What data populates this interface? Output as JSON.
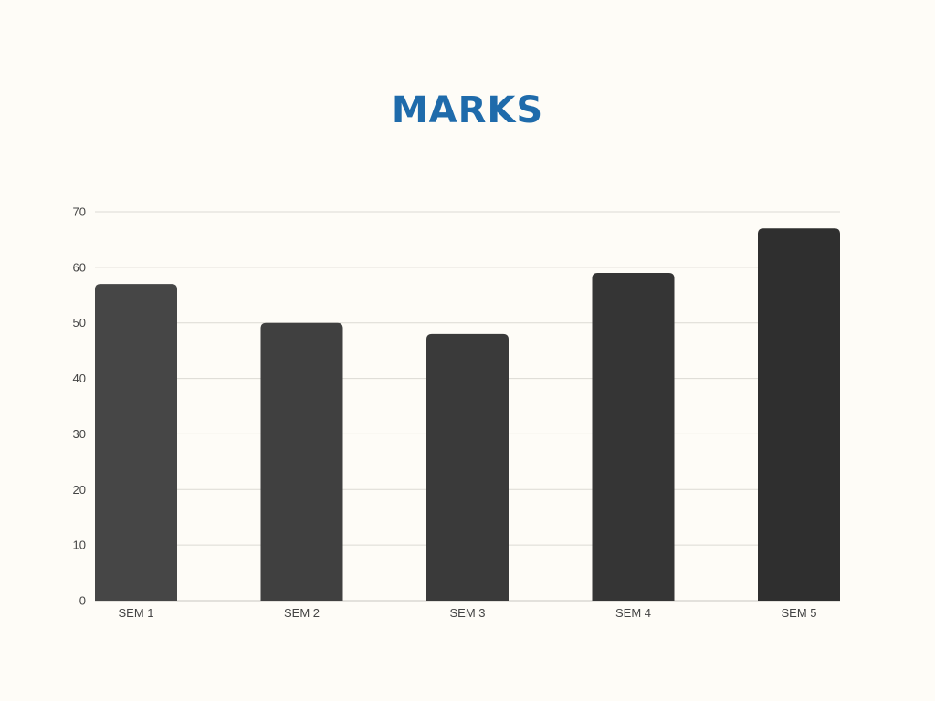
{
  "chart_data": {
    "type": "bar",
    "title": "MARKS",
    "categories": [
      "SEM 1",
      "SEM 2",
      "SEM 3",
      "SEM 4",
      "SEM 5"
    ],
    "values": [
      57,
      50,
      48,
      59,
      67
    ],
    "xlabel": "",
    "ylabel": "",
    "ylim": [
      0,
      70
    ],
    "yticks": [
      0,
      10,
      20,
      30,
      40,
      50,
      60,
      70
    ],
    "grid": true,
    "legend": "none"
  },
  "colors": {
    "title": "#1f6bab",
    "bars": [
      "#464646",
      "#404040",
      "#3a3a3a",
      "#353535",
      "#2f2f2f"
    ]
  }
}
